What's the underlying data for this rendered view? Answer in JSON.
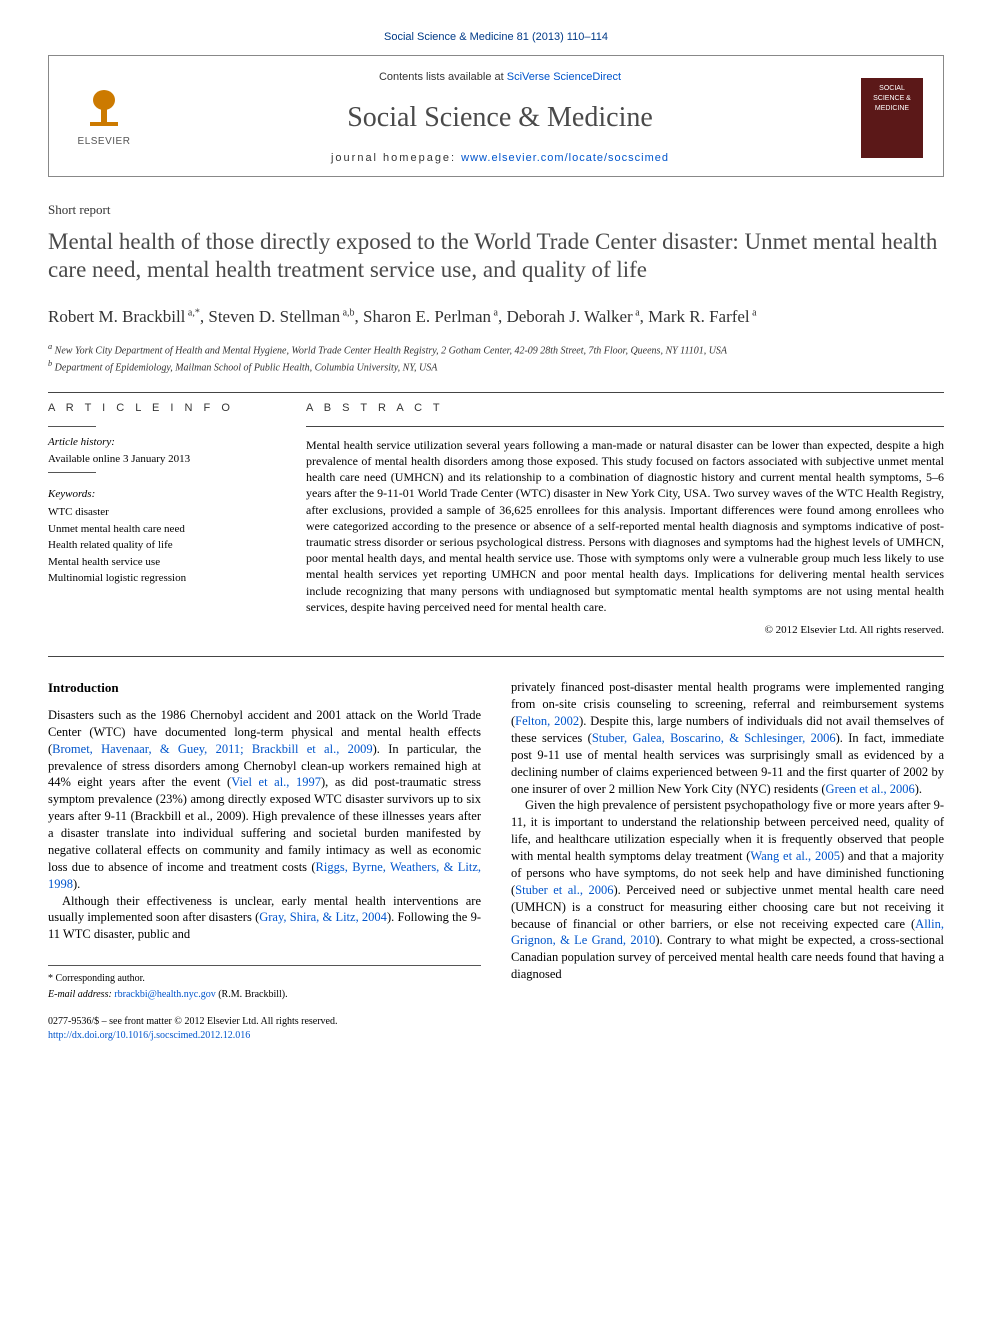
{
  "citation": "Social Science & Medicine 81 (2013) 110–114",
  "journal_box": {
    "contents_prefix": "Contents lists available at ",
    "contents_link": "SciVerse ScienceDirect",
    "journal_title": "Social Science & Medicine",
    "homepage_prefix": "journal homepage: ",
    "homepage_link": "www.elsevier.com/locate/socscimed",
    "elsevier_label": "ELSEVIER",
    "cover_text": "SOCIAL SCIENCE & MEDICINE"
  },
  "report_type": "Short report",
  "title": "Mental health of those directly exposed to the World Trade Center disaster: Unmet mental health care need, mental health treatment service use, and quality of life",
  "authors": [
    {
      "name": "Robert M. Brackbill",
      "sup": "a,*"
    },
    {
      "name": "Steven D. Stellman",
      "sup": "a,b"
    },
    {
      "name": "Sharon E. Perlman",
      "sup": "a"
    },
    {
      "name": "Deborah J. Walker",
      "sup": "a"
    },
    {
      "name": "Mark R. Farfel",
      "sup": "a"
    }
  ],
  "affiliations": [
    "a New York City Department of Health and Mental Hygiene, World Trade Center Health Registry, 2 Gotham Center, 42-09 28th Street, 7th Floor, Queens, NY 11101, USA",
    "b Department of Epidemiology, Mailman School of Public Health, Columbia University, NY, USA"
  ],
  "article_info": {
    "label": "A R T I C L E  I N F O",
    "history_label": "Article history:",
    "history_text": "Available online 3 January 2013",
    "keywords_label": "Keywords:",
    "keywords": [
      "WTC disaster",
      "Unmet mental health care need",
      "Health related quality of life",
      "Mental health service use",
      "Multinomial logistic regression"
    ]
  },
  "abstract": {
    "label": "A B S T R A C T",
    "text": "Mental health service utilization several years following a man-made or natural disaster can be lower than expected, despite a high prevalence of mental health disorders among those exposed. This study focused on factors associated with subjective unmet mental health care need (UMHCN) and its relationship to a combination of diagnostic history and current mental health symptoms, 5–6 years after the 9-11-01 World Trade Center (WTC) disaster in New York City, USA. Two survey waves of the WTC Health Registry, after exclusions, provided a sample of 36,625 enrollees for this analysis. Important differences were found among enrollees who were categorized according to the presence or absence of a self-reported mental health diagnosis and symptoms indicative of post-traumatic stress disorder or serious psychological distress. Persons with diagnoses and symptoms had the highest levels of UMHCN, poor mental health days, and mental health service use. Those with symptoms only were a vulnerable group much less likely to use mental health services yet reporting UMHCN and poor mental health days. Implications for delivering mental health services include recognizing that many persons with undiagnosed but symptomatic mental health symptoms are not using mental health services, despite having perceived need for mental health care.",
    "copyright": "© 2012 Elsevier Ltd. All rights reserved."
  },
  "intro": {
    "heading": "Introduction",
    "paragraphs": [
      {
        "segments": [
          {
            "t": "Disasters such as the 1986 Chernobyl accident and 2001 attack on the World Trade Center (WTC) have documented long-term physical and mental health effects ("
          },
          {
            "t": "Bromet, Havenaar, & Guey, 2011; Brackbill et al., 2009",
            "link": true
          },
          {
            "t": "). In particular, the prevalence of stress disorders among Chernobyl clean-up workers remained high at 44% eight years after the event ("
          },
          {
            "t": "Viel et al., 1997",
            "link": true
          },
          {
            "t": "), as did post-traumatic stress symptom prevalence (23%) among directly exposed WTC disaster survivors up to six years after 9-11 (Brackbill et al., 2009). High prevalence of these illnesses years after a disaster translate into individual suffering and societal burden manifested by negative collateral effects on community and family intimacy as well as economic loss due to absence of income and treatment costs ("
          },
          {
            "t": "Riggs, Byrne, Weathers, & Litz, 1998",
            "link": true
          },
          {
            "t": ")."
          }
        ]
      },
      {
        "segments": [
          {
            "t": "Although their effectiveness is unclear, early mental health interventions are usually implemented soon after disasters ("
          },
          {
            "t": "Gray, Shira, & Litz, 2004",
            "link": true
          },
          {
            "t": "). Following the 9-11 WTC disaster, public and "
          }
        ]
      },
      {
        "segments": [
          {
            "t": "privately financed post-disaster mental health programs were implemented ranging from on-site crisis counseling to screening, referral and reimbursement systems ("
          },
          {
            "t": "Felton, 2002",
            "link": true
          },
          {
            "t": "). Despite this, large numbers of individuals did not avail themselves of these services ("
          },
          {
            "t": "Stuber, Galea, Boscarino, & Schlesinger, 2006",
            "link": true
          },
          {
            "t": "). In fact, immediate post 9-11 use of mental health services was surprisingly small as evidenced by a declining number of claims experienced between 9-11 and the first quarter of 2002 by one insurer of over 2 million New York City (NYC) residents ("
          },
          {
            "t": "Green et al., 2006",
            "link": true
          },
          {
            "t": ")."
          }
        ]
      },
      {
        "segments": [
          {
            "t": "Given the high prevalence of persistent psychopathology five or more years after 9-11, it is important to understand the relationship between perceived need, quality of life, and healthcare utilization especially when it is frequently observed that people with mental health symptoms delay treatment ("
          },
          {
            "t": "Wang et al., 2005",
            "link": true
          },
          {
            "t": ") and that a majority of persons who have symptoms, do not seek help and have diminished functioning ("
          },
          {
            "t": "Stuber et al., 2006",
            "link": true
          },
          {
            "t": "). Perceived need or subjective unmet mental health care need (UMHCN) is a construct for measuring either choosing care but not receiving it because of financial or other barriers, or else not receiving expected care ("
          },
          {
            "t": "Allin, Grignon, & Le Grand, 2010",
            "link": true
          },
          {
            "t": "). Contrary to what might be expected, a cross-sectional Canadian population survey of perceived mental health care needs found that having a diagnosed"
          }
        ]
      }
    ]
  },
  "footer": {
    "corresp": "* Corresponding author.",
    "email_label": "E-mail address: ",
    "email": "rbrackbi@health.nyc.gov",
    "email_name": " (R.M. Brackbill).",
    "issn": "0277-9536/$ – see front matter © 2012 Elsevier Ltd. All rights reserved.",
    "doi": "http://dx.doi.org/10.1016/j.socscimed.2012.12.016"
  },
  "colors": {
    "link": "#0055cc",
    "citation": "#003a87",
    "title_gray": "#4a4a4a",
    "elsevier_orange": "#cc7a00",
    "cover_bg": "#5b1818"
  }
}
